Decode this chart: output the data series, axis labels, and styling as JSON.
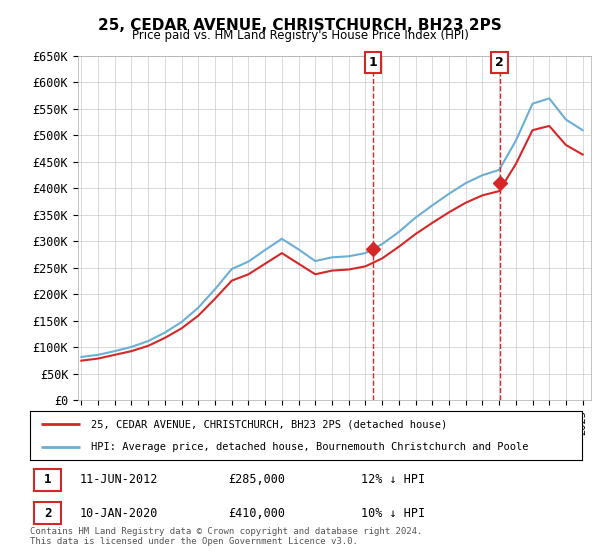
{
  "title": "25, CEDAR AVENUE, CHRISTCHURCH, BH23 2PS",
  "subtitle": "Price paid vs. HM Land Registry's House Price Index (HPI)",
  "ylabel_ticks": [
    "£0",
    "£50K",
    "£100K",
    "£150K",
    "£200K",
    "£250K",
    "£300K",
    "£350K",
    "£400K",
    "£450K",
    "£500K",
    "£550K",
    "£600K",
    "£650K"
  ],
  "ylim": [
    0,
    650000
  ],
  "yticks": [
    0,
    50000,
    100000,
    150000,
    200000,
    250000,
    300000,
    350000,
    400000,
    450000,
    500000,
    550000,
    600000,
    650000
  ],
  "xlim_start": 1994.8,
  "xlim_end": 2025.5,
  "sale1": {
    "date_label": "11-JUN-2012",
    "year": 2012.44,
    "price": 285000,
    "pct": "12%",
    "label": "1"
  },
  "sale2": {
    "date_label": "10-JAN-2020",
    "year": 2020.03,
    "price": 410000,
    "pct": "10%",
    "label": "2"
  },
  "legend_line1": "25, CEDAR AVENUE, CHRISTCHURCH, BH23 2PS (detached house)",
  "legend_line2": "HPI: Average price, detached house, Bournemouth Christchurch and Poole",
  "footnote1": "Contains HM Land Registry data © Crown copyright and database right 2024.",
  "footnote2": "This data is licensed under the Open Government Licence v3.0.",
  "hpi_color": "#6baed6",
  "price_color": "#d62728",
  "background_color": "#ffffff",
  "grid_color": "#cccccc",
  "hpi_years": [
    1995,
    1996,
    1997,
    1998,
    1999,
    2000,
    2001,
    2002,
    2003,
    2004,
    2005,
    2006,
    2007,
    2008,
    2009,
    2010,
    2011,
    2012,
    2013,
    2014,
    2015,
    2016,
    2017,
    2018,
    2019,
    2020,
    2021,
    2022,
    2023,
    2024,
    2025
  ],
  "hpi_values": [
    82000,
    86000,
    93000,
    101000,
    112000,
    128000,
    148000,
    175000,
    210000,
    248000,
    262000,
    284000,
    305000,
    285000,
    263000,
    270000,
    272000,
    278000,
    295000,
    318000,
    345000,
    368000,
    390000,
    410000,
    425000,
    435000,
    490000,
    560000,
    570000,
    530000,
    510000
  ],
  "price_years": [
    1995,
    1996,
    1997,
    1998,
    1999,
    2000,
    2001,
    2002,
    2003,
    2004,
    2005,
    2006,
    2007,
    2008,
    2009,
    2010,
    2011,
    2012,
    2013,
    2014,
    2015,
    2016,
    2017,
    2018,
    2019,
    2020,
    2021,
    2022,
    2023,
    2024,
    2025
  ],
  "price_values": [
    75000,
    79000,
    86000,
    93000,
    103000,
    118000,
    136000,
    160000,
    192000,
    226000,
    238000,
    258000,
    278000,
    258000,
    238000,
    245000,
    247000,
    253000,
    268000,
    290000,
    314000,
    335000,
    355000,
    373000,
    387000,
    395000,
    446000,
    510000,
    518000,
    482000,
    464000
  ]
}
